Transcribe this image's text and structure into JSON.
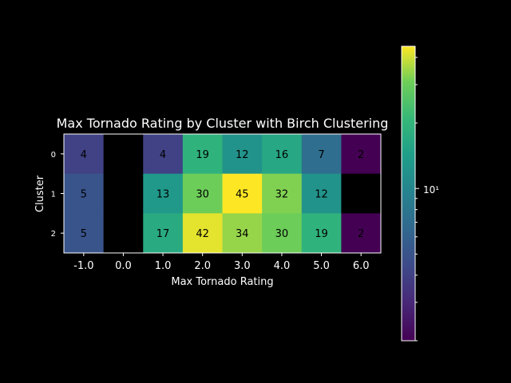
{
  "chart_data": {
    "type": "heatmap",
    "title": "Max Tornado Rating by Cluster with Birch Clustering",
    "xlabel": "Max Tornado Rating",
    "ylabel": "Cluster",
    "x_categories": [
      "-1.0",
      "0.0",
      "1.0",
      "2.0",
      "3.0",
      "4.0",
      "5.0",
      "6.0"
    ],
    "y_categories": [
      "0",
      "1",
      "2"
    ],
    "values": [
      [
        4,
        null,
        4,
        19,
        12,
        16,
        7,
        2
      ],
      [
        5,
        null,
        13,
        30,
        45,
        32,
        12,
        null
      ],
      [
        5,
        null,
        17,
        42,
        34,
        30,
        19,
        2
      ]
    ],
    "color_scale": "log",
    "colormap": "viridis",
    "color_range": [
      2,
      45
    ],
    "missing_color": "#000000",
    "colorbar_tick_label": "10¹"
  }
}
